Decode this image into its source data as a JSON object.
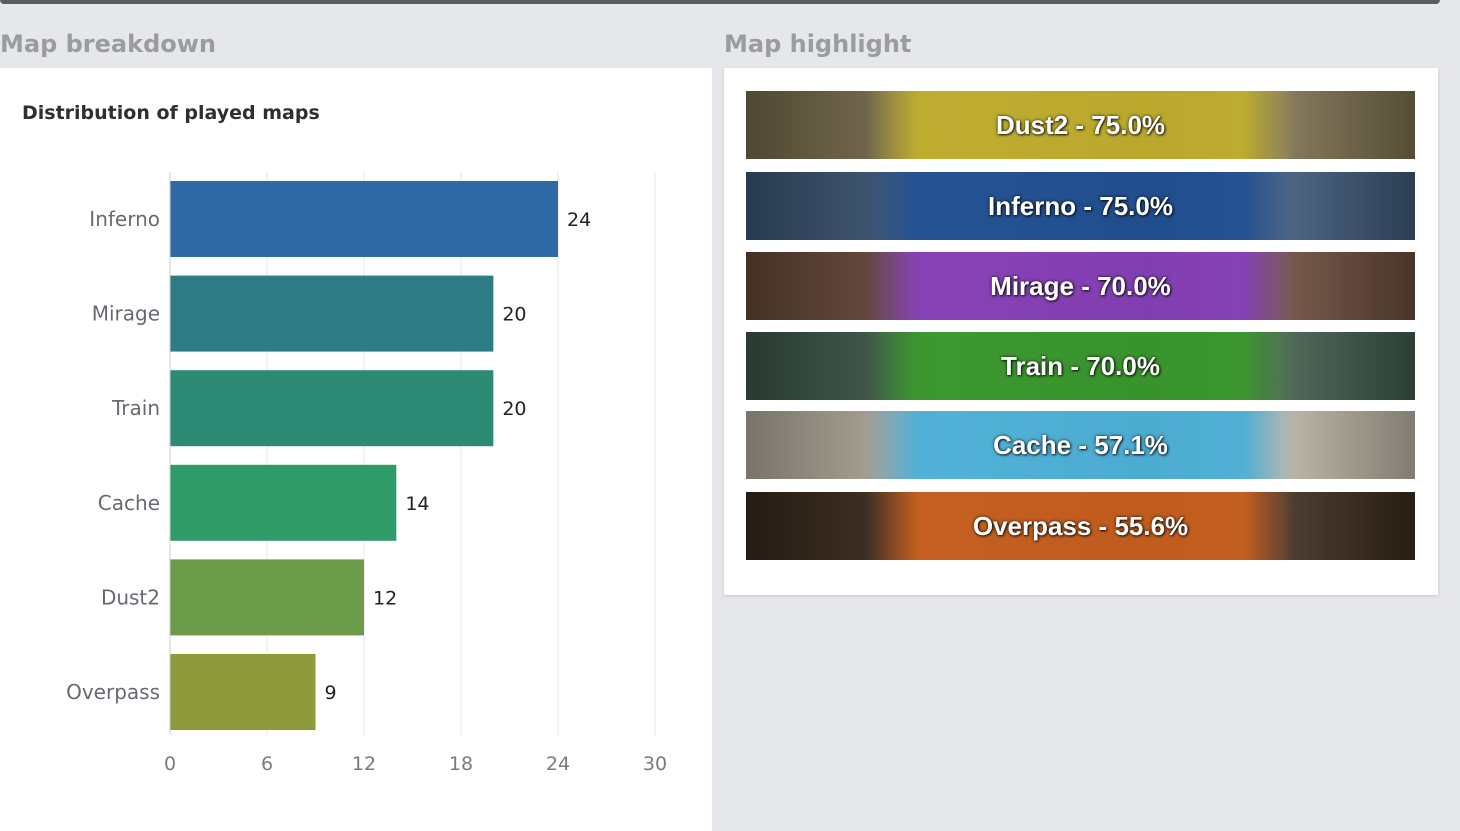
{
  "section_titles": {
    "breakdown": "Map breakdown",
    "highlight": "Map highlight"
  },
  "chart_data": {
    "type": "bar",
    "orientation": "horizontal",
    "title": "Distribution of played maps",
    "categories": [
      "Inferno",
      "Mirage",
      "Train",
      "Cache",
      "Dust2",
      "Overpass"
    ],
    "values": [
      24,
      20,
      20,
      14,
      12,
      9
    ],
    "bar_colors": [
      "#2f6aa6",
      "#2e7d86",
      "#2d8a74",
      "#2f9b68",
      "#6b9a48",
      "#8f9a3c"
    ],
    "xlim": [
      0,
      30
    ],
    "xticks": [
      0,
      6,
      12,
      18,
      24,
      30
    ],
    "grid": true
  },
  "map_highlight": [
    {
      "label": "Dust2 - 75.0%",
      "color": "#c9b62a",
      "bg": "#7a6e4e"
    },
    {
      "label": "Inferno - 75.0%",
      "color": "#1e4f95",
      "bg": "#3d5878"
    },
    {
      "label": "Mirage - 70.0%",
      "color": "#8a3fc8",
      "bg": "#6a4a3a"
    },
    {
      "label": "Train - 70.0%",
      "color": "#3aa02a",
      "bg": "#3f5a4a"
    },
    {
      "label": "Cache - 57.1%",
      "color": "#3fb0de",
      "bg": "#b9b2a2"
    },
    {
      "label": "Overpass - 55.6%",
      "color": "#d9661e",
      "bg": "#3a2a1c"
    }
  ]
}
